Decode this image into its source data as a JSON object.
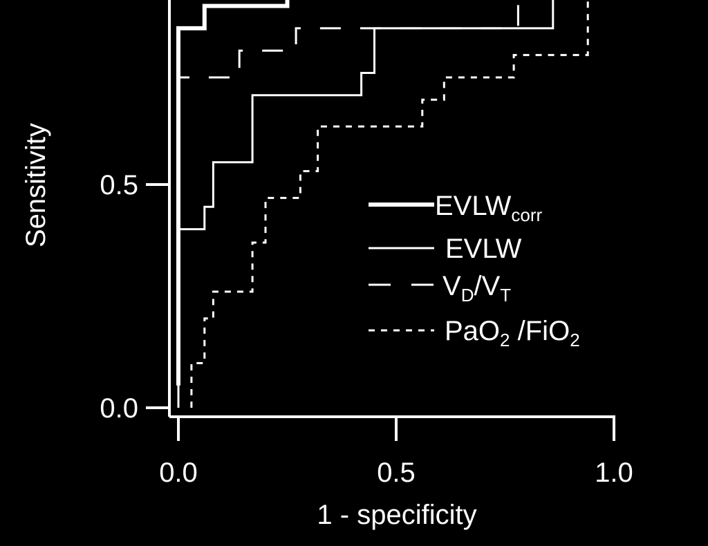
{
  "chart_data": {
    "type": "line",
    "title": "",
    "xlabel": "1 - specificity",
    "ylabel": "Sensitivity",
    "xlim": [
      0,
      1
    ],
    "ylim": [
      0,
      1
    ],
    "x_ticks": [
      {
        "value": 0.0,
        "label": "0.0"
      },
      {
        "value": 0.5,
        "label": "0.5"
      },
      {
        "value": 1.0,
        "label": "1.0"
      }
    ],
    "y_ticks": [
      {
        "value": 0.0,
        "label": "0.0"
      },
      {
        "value": 0.5,
        "label": "0.5"
      }
    ],
    "grid": false,
    "legend_position": "center-right",
    "colors": {
      "background": "#000000",
      "foreground": "#ffffff"
    },
    "series": [
      {
        "name": "EVLW",
        "name_sub": "corr",
        "style": "thick-solid",
        "x": [
          0.0,
          0.0,
          0.0,
          0.06,
          0.06,
          0.25,
          0.25
        ],
        "y": [
          0.05,
          0.84,
          0.85,
          0.85,
          0.9,
          0.9,
          1.0
        ]
      },
      {
        "name": "EVLW",
        "name_sub": "",
        "style": "solid",
        "x": [
          0.0,
          0.0,
          0.06,
          0.06,
          0.08,
          0.08,
          0.17,
          0.17,
          0.42,
          0.42,
          0.45,
          0.45,
          0.86,
          0.86
        ],
        "y": [
          0.0,
          0.4,
          0.4,
          0.45,
          0.45,
          0.55,
          0.55,
          0.7,
          0.7,
          0.75,
          0.75,
          0.85,
          0.85,
          1.0
        ]
      },
      {
        "name": "V",
        "name_sub": "D",
        "name_mid": "/V",
        "name_sub2": "T",
        "style": "dashed",
        "x": [
          0.0,
          0.0,
          0.14,
          0.14,
          0.27,
          0.27,
          0.78,
          0.78
        ],
        "y": [
          0.0,
          0.74,
          0.74,
          0.8,
          0.8,
          0.85,
          0.85,
          1.0
        ]
      },
      {
        "name": "PaO",
        "name_sub": "2",
        "name_mid": " /FiO",
        "name_sub2": "2",
        "style": "dotted",
        "x": [
          0.03,
          0.03,
          0.06,
          0.06,
          0.08,
          0.08,
          0.12,
          0.12,
          0.17,
          0.17,
          0.2,
          0.2,
          0.28,
          0.28,
          0.32,
          0.32,
          0.56,
          0.56,
          0.61,
          0.61,
          0.77,
          0.77,
          0.94,
          0.94
        ],
        "y": [
          0.0,
          0.1,
          0.1,
          0.2,
          0.2,
          0.26,
          0.26,
          0.26,
          0.26,
          0.37,
          0.37,
          0.47,
          0.47,
          0.53,
          0.53,
          0.63,
          0.63,
          0.69,
          0.69,
          0.74,
          0.74,
          0.79,
          0.79,
          1.0
        ]
      }
    ]
  }
}
